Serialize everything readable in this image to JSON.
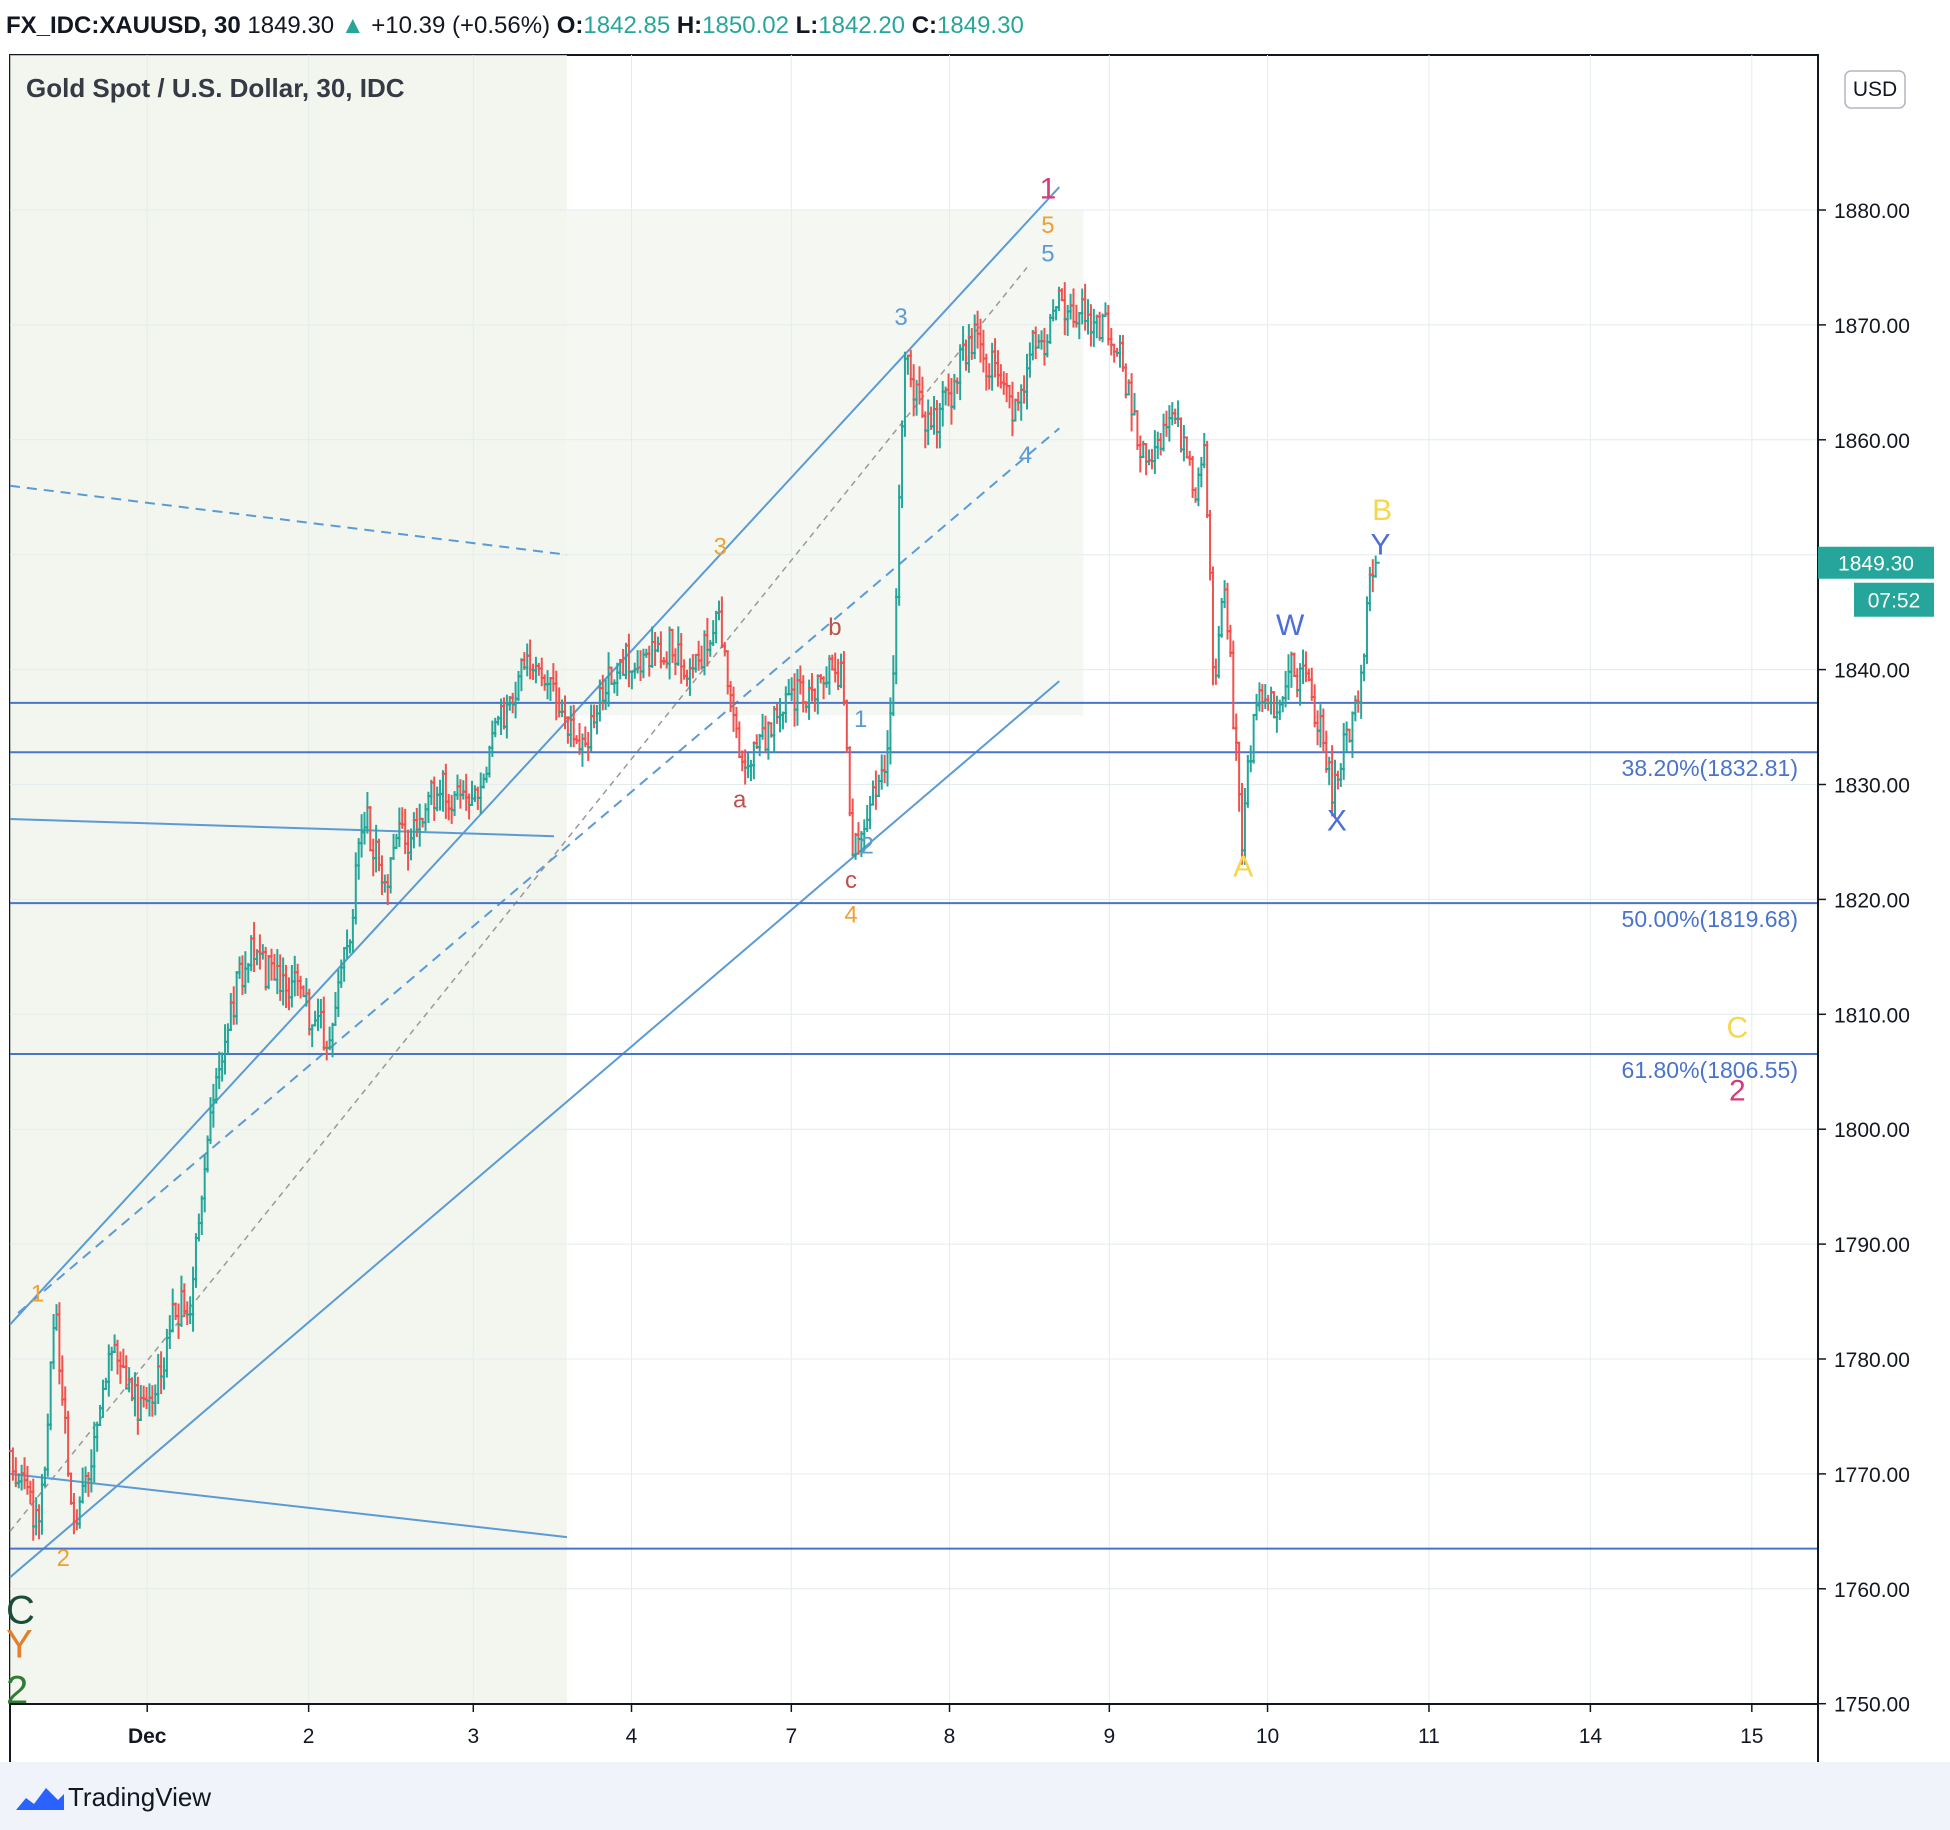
{
  "header": {
    "symbol": "FX_IDC:XAUUSD, 30",
    "last": "1849.30",
    "arrow": "▲",
    "change": "+10.39 (+0.56%)",
    "o_label": "O:",
    "o": "1842.85",
    "h_label": "H:",
    "h": "1850.02",
    "l_label": "L:",
    "l": "1842.20",
    "c_label": "C:",
    "c": "1849.30"
  },
  "chart_title": "Gold Spot / U.S. Dollar, 30, IDC",
  "currency_button": "USD",
  "price_tag": "1849.30",
  "countdown_tag": "07:52",
  "footer": {
    "brand": "TradingView"
  },
  "colors": {
    "up": "#26a69a",
    "down": "#ef5350",
    "channel": "#5b9bd5",
    "level": "#4a74c9",
    "orange": "#f0a030",
    "magenta": "#d63a7a",
    "red_label": "#c0504d",
    "yellow": "#f6d64a",
    "blue_label": "#4a6fd8"
  },
  "chart_data": {
    "type": "candlestick",
    "title": "Gold Spot / U.S. Dollar, 30, IDC",
    "y_ticks": [
      1750,
      1760,
      1770,
      1780,
      1790,
      1800,
      1810,
      1820,
      1830,
      1840,
      1850,
      1860,
      1870,
      1880
    ],
    "y_tick_labels": [
      "1750.00",
      "1760.00",
      "1770.00",
      "1780.00",
      "1790.00",
      "1800.00",
      "1810.00",
      "1820.00",
      "1830.00",
      "1840.00",
      "1850.00",
      "1860.00",
      "1870.00",
      "1880.00"
    ],
    "ylim": [
      1745,
      1890
    ],
    "x_tick_labels": [
      "Dec",
      "2",
      "3",
      "4",
      "7",
      "8",
      "9",
      "10",
      "11",
      "14",
      "15"
    ],
    "x_tick_units": [
      0.85,
      1.85,
      2.87,
      3.85,
      4.84,
      5.82,
      6.81,
      7.79,
      8.79,
      9.79,
      10.79
    ],
    "xlim": [
      0,
      11.2
    ],
    "last_price": 1849.3,
    "price_path": [
      [
        0.0,
        1772
      ],
      [
        0.18,
        1765
      ],
      [
        0.28,
        1784
      ],
      [
        0.4,
        1764
      ],
      [
        0.55,
        1775
      ],
      [
        0.62,
        1781
      ],
      [
        0.78,
        1776
      ],
      [
        0.92,
        1778
      ],
      [
        1.02,
        1784
      ],
      [
        1.12,
        1785
      ],
      [
        1.22,
        1800
      ],
      [
        1.32,
        1807
      ],
      [
        1.42,
        1813
      ],
      [
        1.5,
        1816
      ],
      [
        1.62,
        1813
      ],
      [
        1.75,
        1813
      ],
      [
        1.86,
        1810
      ],
      [
        1.96,
        1808
      ],
      [
        2.08,
        1815
      ],
      [
        2.2,
        1828
      ],
      [
        2.32,
        1820
      ],
      [
        2.4,
        1825
      ],
      [
        2.52,
        1826
      ],
      [
        2.65,
        1830
      ],
      [
        2.76,
        1829
      ],
      [
        2.86,
        1828
      ],
      [
        2.96,
        1832
      ],
      [
        3.05,
        1836
      ],
      [
        3.18,
        1840
      ],
      [
        3.3,
        1840
      ],
      [
        3.45,
        1835
      ],
      [
        3.56,
        1833
      ],
      [
        3.7,
        1840
      ],
      [
        3.82,
        1841
      ],
      [
        3.95,
        1841
      ],
      [
        4.1,
        1842
      ],
      [
        4.25,
        1840
      ],
      [
        4.38,
        1845
      ],
      [
        4.46,
        1838
      ],
      [
        4.55,
        1831
      ],
      [
        4.66,
        1834
      ],
      [
        4.8,
        1838
      ],
      [
        4.95,
        1837
      ],
      [
        5.08,
        1840
      ],
      [
        5.16,
        1839
      ],
      [
        5.22,
        1824
      ],
      [
        5.32,
        1829
      ],
      [
        5.4,
        1831
      ],
      [
        5.45,
        1834
      ],
      [
        5.48,
        1840
      ],
      [
        5.5,
        1852
      ],
      [
        5.54,
        1867
      ],
      [
        5.62,
        1864
      ],
      [
        5.7,
        1861
      ],
      [
        5.82,
        1864
      ],
      [
        5.96,
        1869
      ],
      [
        6.1,
        1866
      ],
      [
        6.22,
        1862
      ],
      [
        6.32,
        1868
      ],
      [
        6.42,
        1869
      ],
      [
        6.5,
        1872
      ],
      [
        6.62,
        1871
      ],
      [
        6.75,
        1870
      ],
      [
        6.88,
        1868
      ],
      [
        6.98,
        1860
      ],
      [
        7.08,
        1858
      ],
      [
        7.16,
        1862
      ],
      [
        7.25,
        1860
      ],
      [
        7.34,
        1856
      ],
      [
        7.4,
        1860
      ],
      [
        7.46,
        1838
      ],
      [
        7.52,
        1848
      ],
      [
        7.58,
        1836
      ],
      [
        7.63,
        1825
      ],
      [
        7.68,
        1833
      ],
      [
        7.76,
        1838
      ],
      [
        7.85,
        1836
      ],
      [
        7.92,
        1840
      ],
      [
        8.02,
        1839
      ],
      [
        8.12,
        1835
      ],
      [
        8.2,
        1829
      ],
      [
        8.28,
        1834
      ],
      [
        8.36,
        1838
      ],
      [
        8.42,
        1847
      ],
      [
        8.46,
        1849.3
      ]
    ],
    "channel_upper": [
      [
        0.0,
        1783
      ],
      [
        6.5,
        1882
      ]
    ],
    "channel_lower": [
      [
        0.0,
        1761
      ],
      [
        6.5,
        1839
      ]
    ],
    "channel_mid_dashed": [
      [
        0.05,
        1784
      ],
      [
        6.5,
        1861
      ]
    ],
    "channel_center_dotted": [
      [
        0.0,
        1765
      ],
      [
        6.3,
        1875
      ]
    ],
    "left_dashed_line": [
      [
        0.0,
        1856
      ],
      [
        3.45,
        1850
      ]
    ],
    "left_line_1": [
      [
        0.0,
        1827
      ],
      [
        3.37,
        1825.5
      ]
    ],
    "left_line_2": [
      [
        0.0,
        1770
      ],
      [
        3.45,
        1764.5
      ]
    ],
    "highlight_regions": [
      [
        0.0,
        3.45
      ],
      [
        3.45,
        6.65
      ]
    ],
    "horizontal_levels": [
      {
        "price": 1837.1,
        "label": ""
      },
      {
        "price": 1832.81,
        "label": "38.20%(1832.81)"
      },
      {
        "price": 1819.68,
        "label": "50.00%(1819.68)"
      },
      {
        "price": 1806.55,
        "label": "61.80%(1806.55)"
      },
      {
        "price": 1763.5,
        "label": ""
      }
    ],
    "wave_labels": [
      {
        "text": "1",
        "x": 0.17,
        "p": 1785,
        "color": "orange"
      },
      {
        "text": "2",
        "x": 0.33,
        "p": 1762,
        "color": "orange"
      },
      {
        "text": "3",
        "x": 4.4,
        "p": 1850,
        "color": "orange"
      },
      {
        "text": "4",
        "x": 5.21,
        "p": 1818,
        "color": "orange"
      },
      {
        "text": "5",
        "x": 6.43,
        "p": 1878,
        "color": "orange"
      },
      {
        "text": "1",
        "x": 6.43,
        "p": 1881,
        "color": "magenta"
      },
      {
        "text": "5",
        "x": 6.43,
        "p": 1875.5,
        "color": "channel"
      },
      {
        "text": "3",
        "x": 5.52,
        "p": 1870,
        "color": "channel"
      },
      {
        "text": "4",
        "x": 6.29,
        "p": 1858,
        "color": "channel"
      },
      {
        "text": "1",
        "x": 5.27,
        "p": 1835,
        "color": "channel"
      },
      {
        "text": "2",
        "x": 5.31,
        "p": 1824,
        "color": "channel"
      },
      {
        "text": "a",
        "x": 4.52,
        "p": 1828,
        "color": "red_label"
      },
      {
        "text": "b",
        "x": 5.11,
        "p": 1843,
        "color": "red_label"
      },
      {
        "text": "c",
        "x": 5.21,
        "p": 1821,
        "color": "red_label"
      },
      {
        "text": "A",
        "x": 7.64,
        "p": 1822,
        "color": "yellow"
      },
      {
        "text": "B",
        "x": 8.5,
        "p": 1853,
        "color": "yellow"
      },
      {
        "text": "Y",
        "x": 8.49,
        "p": 1850,
        "color": "blue_label"
      },
      {
        "text": "W",
        "x": 7.93,
        "p": 1843,
        "color": "blue_label"
      },
      {
        "text": "X",
        "x": 8.22,
        "p": 1826,
        "color": "blue_label"
      },
      {
        "text": "C",
        "x": 10.7,
        "p": 1808,
        "color": "yellow"
      },
      {
        "text": "2",
        "x": 10.7,
        "p": 1802.5,
        "color": "magenta"
      }
    ],
    "edge_labels": [
      {
        "text": "C",
        "p": 1757,
        "color": "#1d4d3a"
      },
      {
        "text": "Y",
        "p": 1754,
        "color": "#e08030"
      },
      {
        "text": "2",
        "p": 1750,
        "color": "#2e7d32"
      }
    ]
  }
}
